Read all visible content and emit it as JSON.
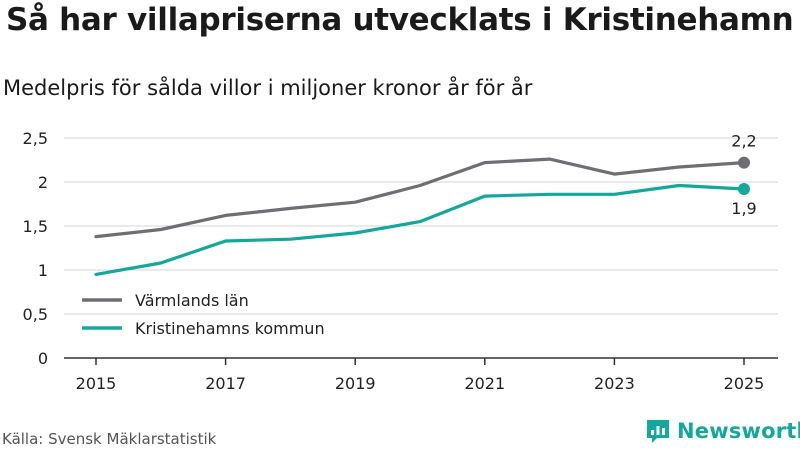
{
  "title": "Så har villapriserna utvecklats i Kristinehamn",
  "subtitle": "Medelpris för sålda villor i miljoner kronor år för år",
  "source": "Källa: Svensk Mäklarstatistik",
  "brand": {
    "name": "Newsworthy",
    "icon": "newsworthy-logo-icon",
    "color": "#14a89a"
  },
  "chart_data": {
    "type": "line",
    "title": "Så har villapriserna utvecklats i Kristinehamn",
    "xlabel": "",
    "ylabel": "Medelpris för sålda villor i miljoner kronor",
    "x": [
      2015,
      2016,
      2017,
      2018,
      2019,
      2020,
      2021,
      2022,
      2023,
      2024,
      2025
    ],
    "xticks": [
      2015,
      2017,
      2019,
      2021,
      2023,
      2025
    ],
    "xtick_labels": [
      "2015",
      "2017",
      "2019",
      "2021",
      "2023",
      "2025"
    ],
    "yticks": [
      0,
      0.5,
      1,
      1.5,
      2,
      2.5
    ],
    "ytick_labels": [
      "0",
      "0,5",
      "1",
      "1,5",
      "2",
      "2,5"
    ],
    "ylim": [
      0,
      2.5
    ],
    "grid": true,
    "legend_position": "bottom-left",
    "series": [
      {
        "name": "Värmlands län",
        "color": "#6e6e73",
        "values": [
          1.38,
          1.46,
          1.62,
          1.7,
          1.77,
          1.96,
          2.22,
          2.26,
          2.09,
          2.17,
          2.22
        ],
        "end_label": "2,2",
        "end_label_position": "above"
      },
      {
        "name": "Kristinehamns kommun",
        "color": "#14a89a",
        "values": [
          0.95,
          1.08,
          1.33,
          1.35,
          1.42,
          1.55,
          1.84,
          1.86,
          1.86,
          1.96,
          1.92
        ],
        "end_label": "1,9",
        "end_label_position": "below"
      }
    ]
  }
}
